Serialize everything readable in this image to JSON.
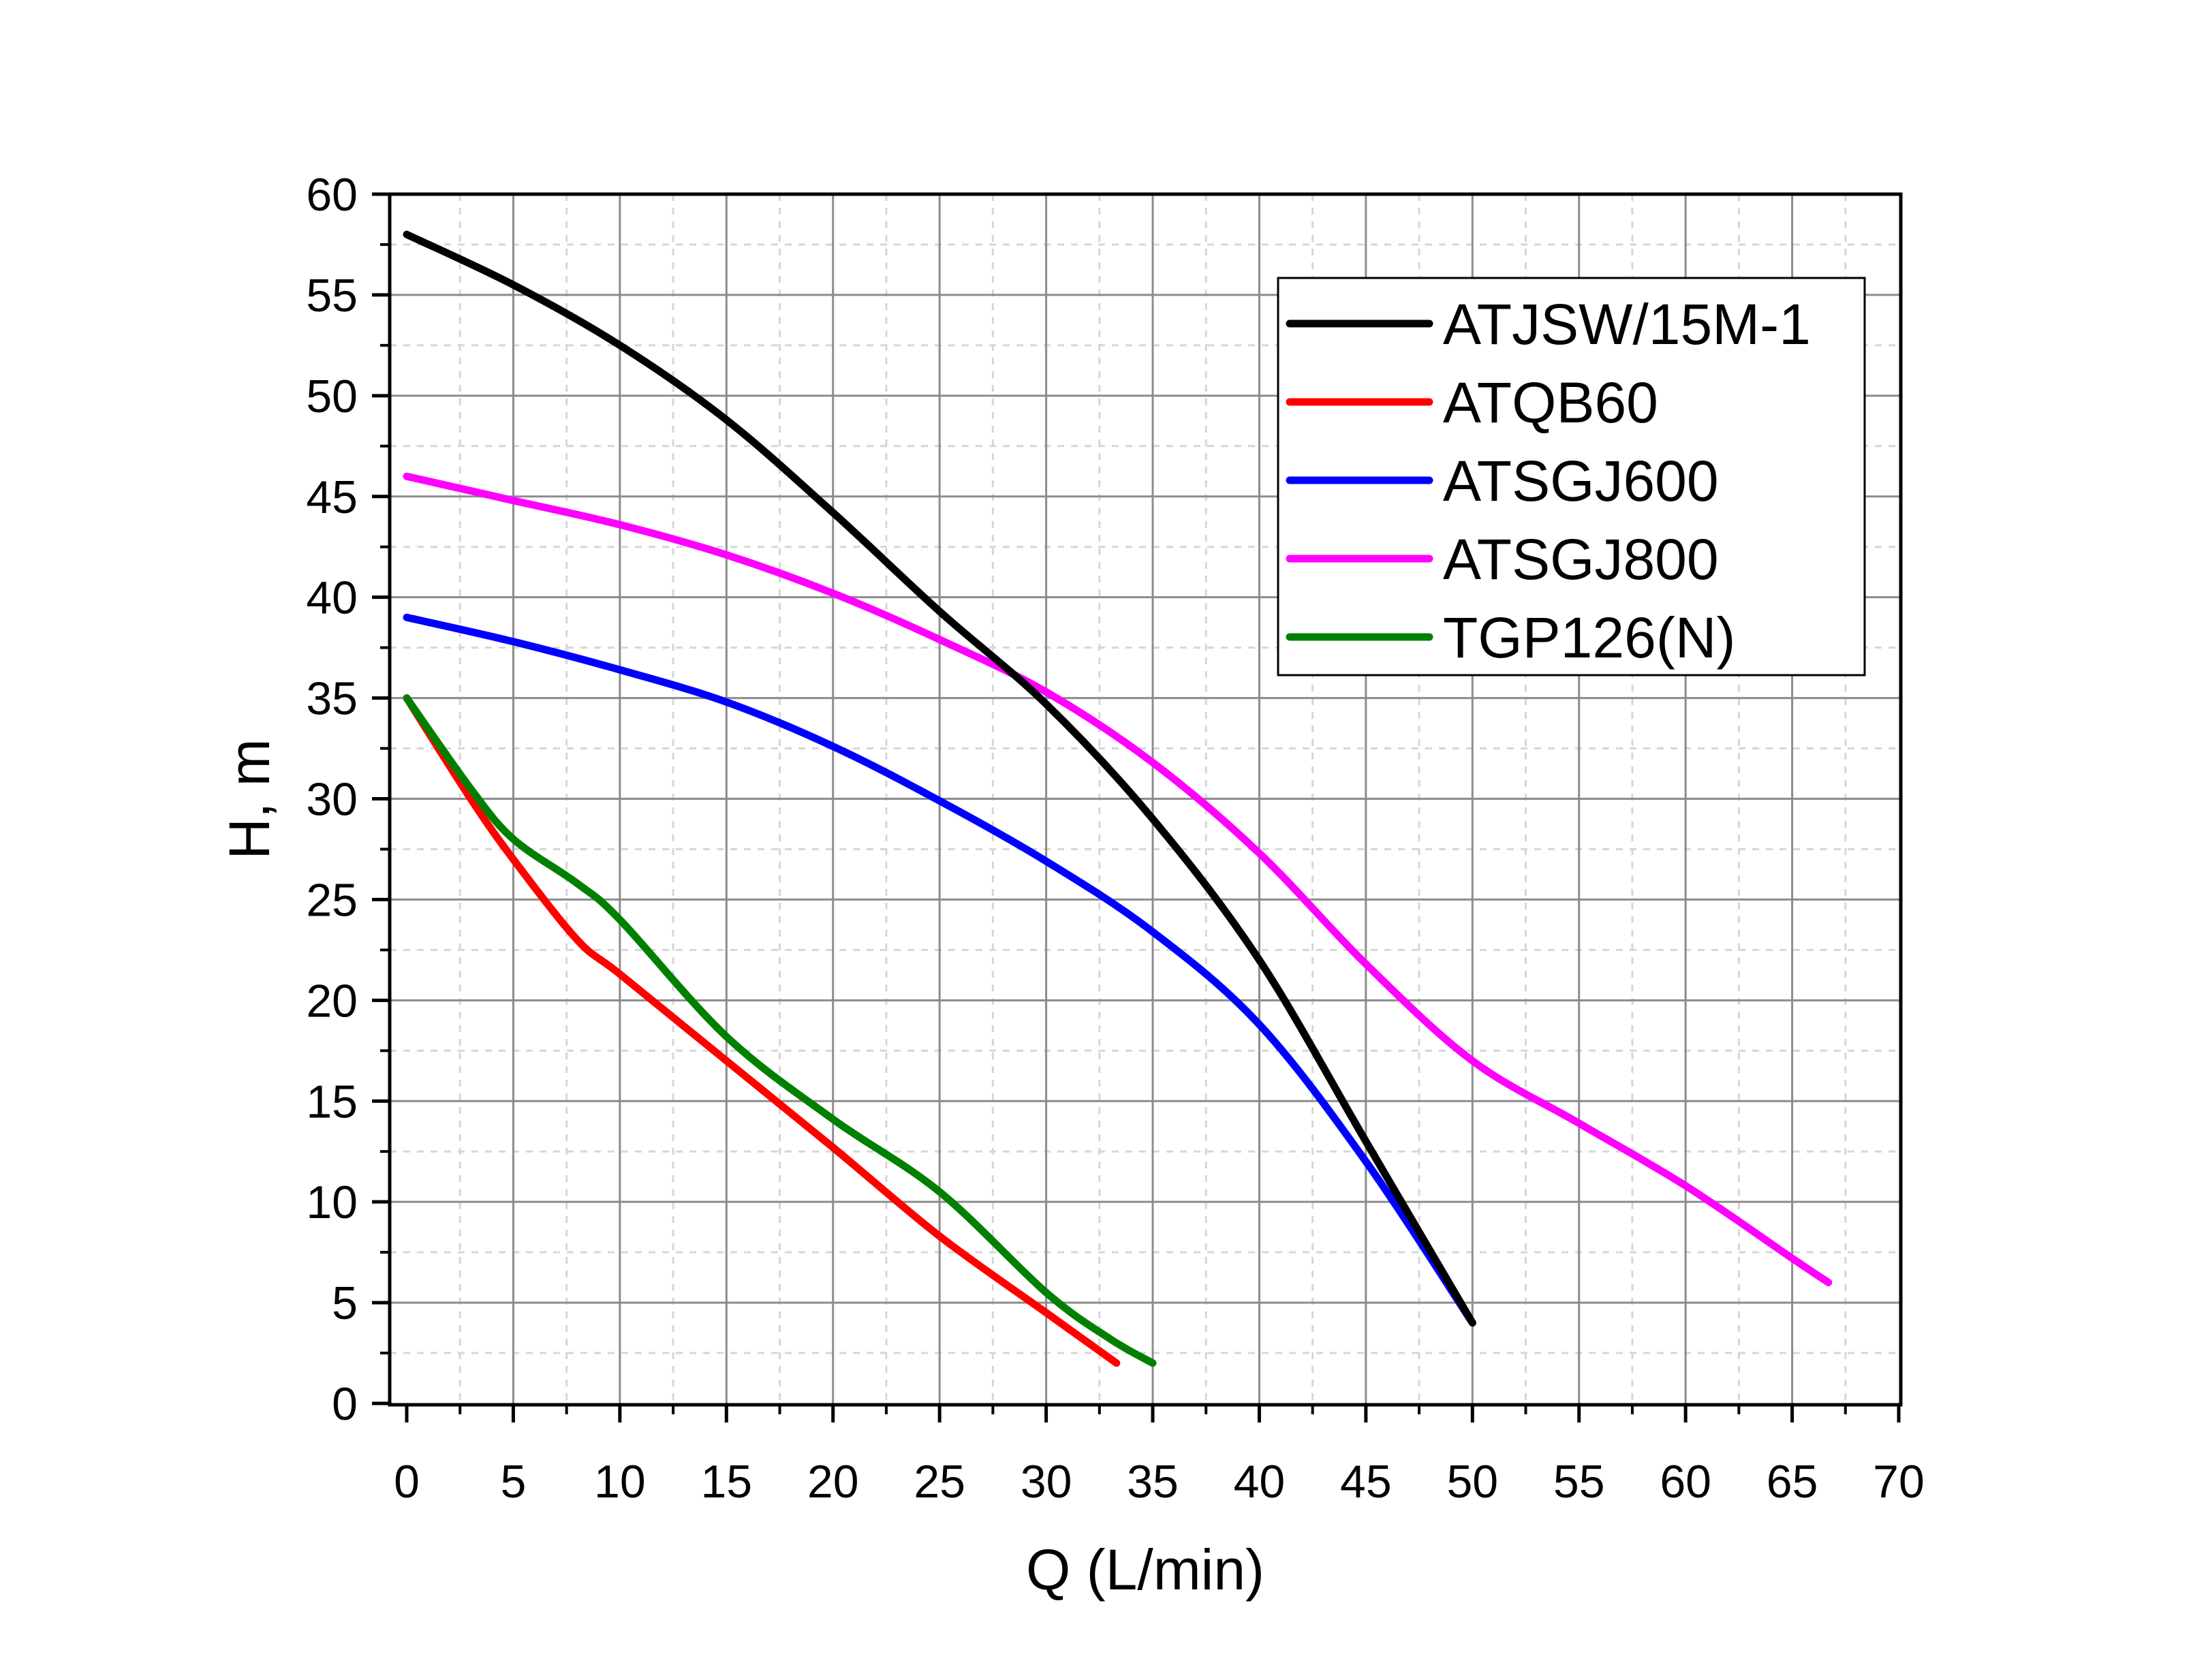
{
  "chart_data": {
    "type": "line",
    "xlabel": "Q (L/min)",
    "ylabel": "H, m",
    "xlim": [
      0,
      70
    ],
    "ylim": [
      0,
      60
    ],
    "x_ticks": [
      "0",
      "5",
      "10",
      "15",
      "20",
      "25",
      "30",
      "35",
      "40",
      "45",
      "50",
      "55",
      "60",
      "65",
      "70"
    ],
    "y_ticks": [
      "0",
      "5",
      "10",
      "15",
      "20",
      "25",
      "30",
      "35",
      "40",
      "45",
      "50",
      "55",
      "60"
    ],
    "grid": true,
    "legend_position": "top-right",
    "series": [
      {
        "name": "ATJSW/15M-1",
        "color": "#000000",
        "points": [
          [
            0,
            58
          ],
          [
            5,
            55.5
          ],
          [
            10,
            52.5
          ],
          [
            15,
            48.8
          ],
          [
            20,
            44.2
          ],
          [
            25,
            39.3
          ],
          [
            30,
            34.7
          ],
          [
            35,
            29
          ],
          [
            40,
            22
          ],
          [
            45,
            13
          ],
          [
            50,
            4
          ]
        ]
      },
      {
        "name": "ATQB60",
        "color": "#ff0000",
        "points": [
          [
            0,
            35
          ],
          [
            3,
            30
          ],
          [
            5,
            27
          ],
          [
            8,
            23
          ],
          [
            10,
            21.3
          ],
          [
            15,
            17
          ],
          [
            20,
            12.7
          ],
          [
            25,
            8.3
          ],
          [
            30,
            4.5
          ],
          [
            33.3,
            2
          ]
        ]
      },
      {
        "name": "ATSGJ600",
        "color": "#0000ff",
        "points": [
          [
            0,
            39
          ],
          [
            5,
            37.8
          ],
          [
            10,
            36.4
          ],
          [
            15,
            34.8
          ],
          [
            20,
            32.6
          ],
          [
            25,
            29.9
          ],
          [
            30,
            26.9
          ],
          [
            35,
            23.4
          ],
          [
            40,
            18.8
          ],
          [
            45,
            12
          ],
          [
            50,
            4
          ]
        ]
      },
      {
        "name": "ATSGJ800",
        "color": "#ff00ff",
        "points": [
          [
            0,
            46
          ],
          [
            5,
            44.8
          ],
          [
            10,
            43.6
          ],
          [
            15,
            42.1
          ],
          [
            20,
            40.2
          ],
          [
            25,
            37.9
          ],
          [
            30,
            35.3
          ],
          [
            35,
            31.8
          ],
          [
            40,
            27.3
          ],
          [
            45,
            21.8
          ],
          [
            50,
            17
          ],
          [
            55,
            13.9
          ],
          [
            60,
            10.8
          ],
          [
            65,
            7.2
          ],
          [
            66.7,
            6
          ]
        ]
      },
      {
        "name": "TGP126(N)",
        "color": "#008000",
        "points": [
          [
            0,
            35
          ],
          [
            3,
            30.5
          ],
          [
            5,
            28
          ],
          [
            8,
            25.8
          ],
          [
            10,
            24
          ],
          [
            15,
            18.2
          ],
          [
            20,
            14.1
          ],
          [
            25,
            10.5
          ],
          [
            30,
            5.5
          ],
          [
            33,
            3.2
          ],
          [
            35,
            2
          ]
        ]
      }
    ]
  }
}
